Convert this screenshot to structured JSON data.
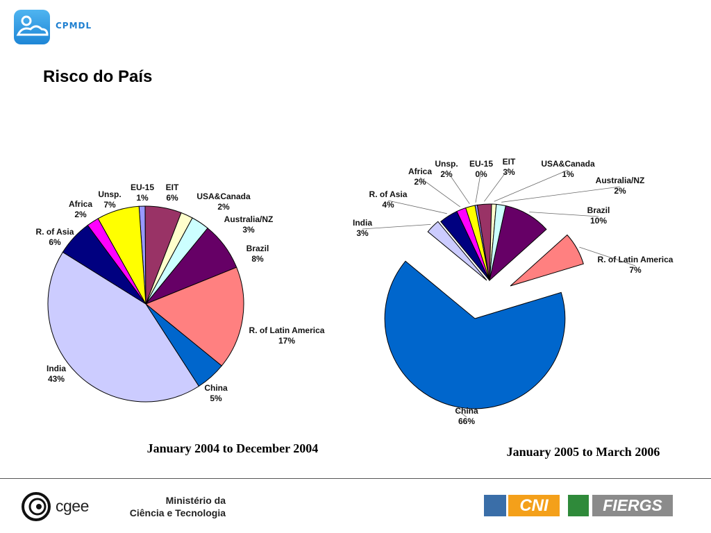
{
  "header": {
    "logo_text": "CPMDL",
    "title": "Risco do País"
  },
  "chart_data": [
    {
      "type": "pie",
      "period": "January 2004 to December 2004",
      "slices": [
        {
          "label": "EU-15",
          "pct": "1%",
          "value": 1,
          "color": "#9999ff"
        },
        {
          "label": "EIT",
          "pct": "6%",
          "value": 6,
          "color": "#993366"
        },
        {
          "label": "USA&Canada",
          "pct": "2%",
          "value": 2,
          "color": "#ffffcc"
        },
        {
          "label": "Australia/NZ",
          "pct": "3%",
          "value": 3,
          "color": "#ccffff"
        },
        {
          "label": "Brazil",
          "pct": "8%",
          "value": 8,
          "color": "#660066"
        },
        {
          "label": "R. of Latin America",
          "pct": "17%",
          "value": 17,
          "color": "#ff8080"
        },
        {
          "label": "China",
          "pct": "5%",
          "value": 5,
          "color": "#0066cc"
        },
        {
          "label": "India",
          "pct": "43%",
          "value": 43,
          "color": "#ccccff"
        },
        {
          "label": "R. of Asia",
          "pct": "6%",
          "value": 6,
          "color": "#000080"
        },
        {
          "label": "Africa",
          "pct": "2%",
          "value": 2,
          "color": "#ff00ff"
        },
        {
          "label": "Unsp.",
          "pct": "7%",
          "value": 7,
          "color": "#ffff00"
        }
      ]
    },
    {
      "type": "pie",
      "period": "January 2005 to March 2006",
      "slices": [
        {
          "label": "EU-15",
          "pct": "0%",
          "value": 0.5,
          "color": "#9999ff"
        },
        {
          "label": "EIT",
          "pct": "3%",
          "value": 3,
          "color": "#993366"
        },
        {
          "label": "USA&Canada",
          "pct": "1%",
          "value": 1,
          "color": "#ffffcc"
        },
        {
          "label": "Australia/NZ",
          "pct": "2%",
          "value": 2,
          "color": "#ccffff"
        },
        {
          "label": "Brazil",
          "pct": "10%",
          "value": 10,
          "color": "#660066"
        },
        {
          "label": "R. of Latin America",
          "pct": "7%",
          "value": 7,
          "color": "#ff8080"
        },
        {
          "label": "China",
          "pct": "66%",
          "value": 66,
          "color": "#0066cc"
        },
        {
          "label": "India",
          "pct": "3%",
          "value": 3,
          "color": "#ccccff"
        },
        {
          "label": "R. of Asia",
          "pct": "4%",
          "value": 4,
          "color": "#000080"
        },
        {
          "label": "Africa",
          "pct": "2%",
          "value": 2,
          "color": "#ff00ff"
        },
        {
          "label": "Unsp.",
          "pct": "2%",
          "value": 2,
          "color": "#ffff00"
        }
      ]
    }
  ],
  "footer": {
    "cgee": "cgee",
    "ministry_line1": "Ministério da",
    "ministry_line2": "Ciência e Tecnologia",
    "cni": "CNI",
    "fiergs": "FIERGS"
  }
}
